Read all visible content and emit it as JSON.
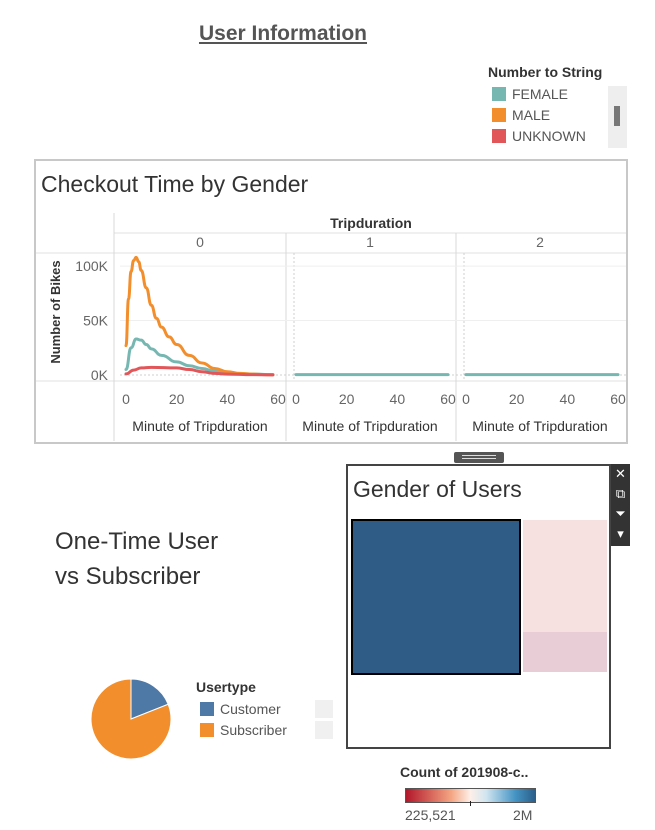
{
  "page_title": "User Information",
  "gender_legend": {
    "title": "Number to String",
    "items": [
      {
        "label": "FEMALE",
        "color": "#76b7b2"
      },
      {
        "label": "MALE",
        "color": "#f28e2b"
      },
      {
        "label": "UNKNOWN",
        "color": "#e15759"
      }
    ]
  },
  "chart_data": [
    {
      "type": "line",
      "title": "Checkout Time by Gender",
      "column_header": "Tripduration",
      "panels": [
        "0",
        "1",
        "2"
      ],
      "xlabel": "Minute of Tripduration",
      "ylabel": "Number of Bikes",
      "x_ticks": [
        0,
        20,
        40,
        60
      ],
      "y_ticks": [
        0,
        50000,
        100000
      ],
      "y_tick_labels": [
        "0K",
        "50K",
        "100K"
      ],
      "xlim": [
        0,
        60
      ],
      "ylim": [
        0,
        112000
      ],
      "series": [
        {
          "name": "FEMALE",
          "color": "#76b7b2",
          "panel": "0",
          "x": [
            0,
            2,
            4,
            6,
            8,
            10,
            14,
            20,
            25,
            30,
            35,
            40,
            45,
            50,
            55,
            58
          ],
          "y": [
            5000,
            25000,
            33000,
            32000,
            28000,
            24000,
            18000,
            12000,
            8500,
            6000,
            3500,
            2000,
            1200,
            800,
            500,
            300
          ]
        },
        {
          "name": "MALE",
          "color": "#f28e2b",
          "panel": "0",
          "x": [
            0,
            1,
            2,
            3,
            4,
            5,
            6,
            8,
            10,
            12,
            14,
            17,
            20,
            25,
            30,
            35,
            40,
            45,
            50,
            55,
            58
          ],
          "y": [
            27000,
            70000,
            95000,
            105000,
            108000,
            104000,
            96000,
            80000,
            64000,
            52000,
            44000,
            35000,
            28000,
            18000,
            11000,
            6000,
            3000,
            1500,
            800,
            400,
            200
          ]
        },
        {
          "name": "UNKNOWN",
          "color": "#e15759",
          "panel": "0",
          "x": [
            0,
            3,
            6,
            10,
            20,
            25,
            30,
            35,
            40,
            50,
            58
          ],
          "y": [
            1000,
            4500,
            6500,
            7000,
            6500,
            5000,
            3000,
            1500,
            800,
            300,
            100
          ]
        },
        {
          "name": "FEMALE",
          "color": "#76b7b2",
          "panel": "1",
          "x": [
            0,
            60
          ],
          "y": [
            300,
            300
          ]
        },
        {
          "name": "FEMALE",
          "color": "#76b7b2",
          "panel": "2",
          "x": [
            0,
            60
          ],
          "y": [
            300,
            300
          ]
        }
      ]
    },
    {
      "type": "treemap",
      "title": "Gender of Users",
      "cells": [
        {
          "color": "#2f5b87",
          "selected": true
        },
        {
          "color": "#f6e0e0",
          "selected": false
        },
        {
          "color": "#e8ccd6",
          "selected": false
        }
      ]
    },
    {
      "type": "pie",
      "title": "One-Time User vs Subscriber",
      "legend_title": "Usertype",
      "slices": [
        {
          "label": "Customer",
          "value": 0.19,
          "color": "#4e79a7"
        },
        {
          "label": "Subscriber",
          "value": 0.81,
          "color": "#f28e2b"
        }
      ]
    }
  ],
  "count_legend": {
    "title": "Count of 201908-c..",
    "min_label": "225,521",
    "max_label": "2M"
  },
  "toolbar": [
    {
      "icon": "close-icon",
      "glyph": "✕"
    },
    {
      "icon": "popout-icon",
      "glyph": "⧉"
    },
    {
      "icon": "filter-icon",
      "glyph": "⏷"
    },
    {
      "icon": "dropdown-icon",
      "glyph": "▾"
    }
  ]
}
